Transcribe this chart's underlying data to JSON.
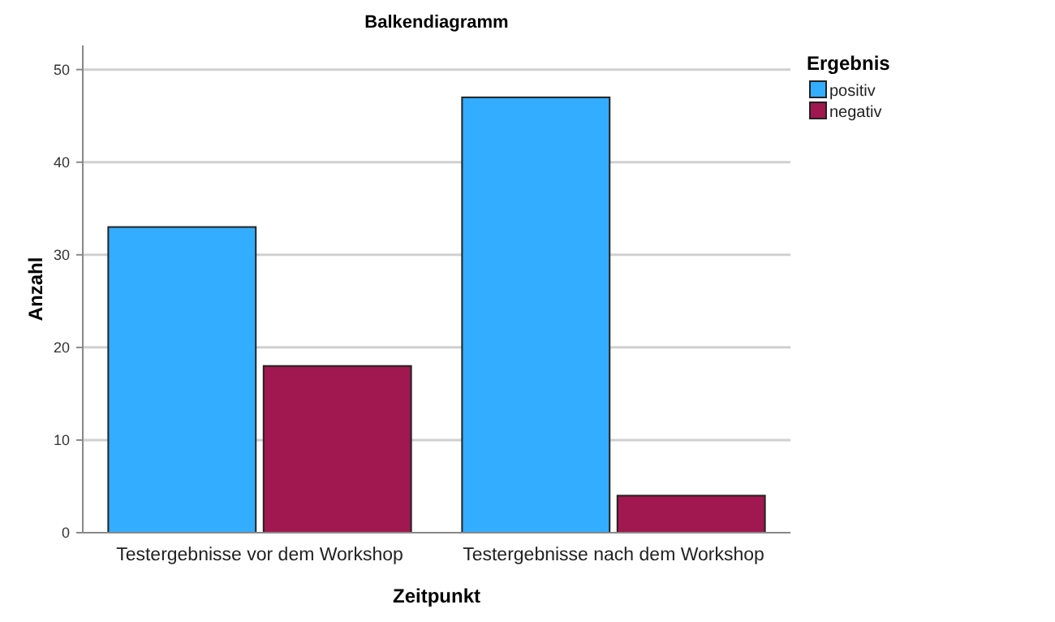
{
  "chart_data": {
    "type": "bar",
    "title": "Balkendiagramm",
    "xlabel": "Zeitpunkt",
    "ylabel": "Anzahl",
    "legend_title": "Ergebnis",
    "categories": [
      "Testergebnisse vor dem Workshop",
      "Testergebnisse nach dem Workshop"
    ],
    "series": [
      {
        "name": "positiv",
        "color": "#33adff",
        "values": [
          33,
          47
        ]
      },
      {
        "name": "negativ",
        "color": "#a0184f",
        "values": [
          18,
          4
        ]
      }
    ],
    "ylim": [
      0,
      52.6
    ],
    "yticks": [
      0,
      10,
      20,
      30,
      40,
      50
    ],
    "grid": "y",
    "legend": "top right"
  }
}
